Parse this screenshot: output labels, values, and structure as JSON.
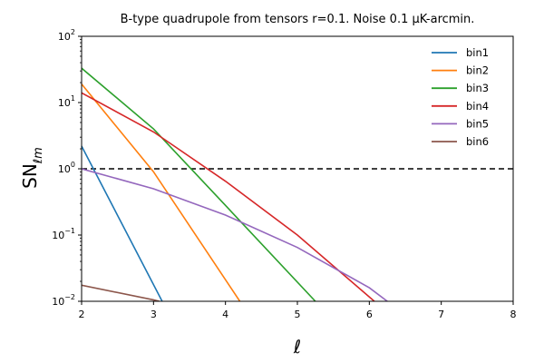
{
  "chart_data": {
    "type": "line",
    "title": "B-type quadrupole from tensors r=0.1. Noise 0.1 μK-arcmin.",
    "xlabel": "ℓ",
    "ylabel_main": "SN",
    "ylabel_sub": "ℓm",
    "xlim": [
      2,
      8
    ],
    "ylim": [
      0.01,
      100
    ],
    "yscale": "log",
    "xticks": [
      "2",
      "3",
      "4",
      "5",
      "6",
      "7",
      "8"
    ],
    "ytick_labels": [
      {
        "value": 0.01,
        "base": "10",
        "exp": "−2"
      },
      {
        "value": 0.1,
        "base": "10",
        "exp": "−1"
      },
      {
        "value": 1,
        "base": "10",
        "exp": "0"
      },
      {
        "value": 10,
        "base": "10",
        "exp": "1"
      },
      {
        "value": 100,
        "base": "10",
        "exp": "2"
      }
    ],
    "hline": {
      "y": 1,
      "style": "dashed",
      "color": "#000000"
    },
    "legend_position": "top-right",
    "series": [
      {
        "name": "bin1",
        "color": "#1f77b4",
        "points": [
          [
            2,
            2.2
          ],
          [
            3.12,
            0.01
          ]
        ]
      },
      {
        "name": "bin2",
        "color": "#ff7f0e",
        "points": [
          [
            2,
            19
          ],
          [
            3,
            0.9
          ],
          [
            4.2,
            0.01
          ]
        ]
      },
      {
        "name": "bin3",
        "color": "#2ca02c",
        "points": [
          [
            2,
            33
          ],
          [
            3,
            4.0
          ],
          [
            4,
            0.28
          ],
          [
            5.25,
            0.01
          ]
        ]
      },
      {
        "name": "bin4",
        "color": "#d62728",
        "points": [
          [
            2,
            14
          ],
          [
            3,
            3.6
          ],
          [
            4,
            0.65
          ],
          [
            5,
            0.1
          ],
          [
            6.07,
            0.01
          ]
        ]
      },
      {
        "name": "bin5",
        "color": "#9467bd",
        "points": [
          [
            2,
            1.0
          ],
          [
            3,
            0.5
          ],
          [
            4,
            0.2
          ],
          [
            5,
            0.065
          ],
          [
            6,
            0.016
          ],
          [
            6.25,
            0.01
          ]
        ]
      },
      {
        "name": "bin6",
        "color": "#8c564b",
        "points": [
          [
            2,
            0.0175
          ],
          [
            3,
            0.0105
          ],
          [
            3.08,
            0.01
          ]
        ]
      }
    ]
  }
}
